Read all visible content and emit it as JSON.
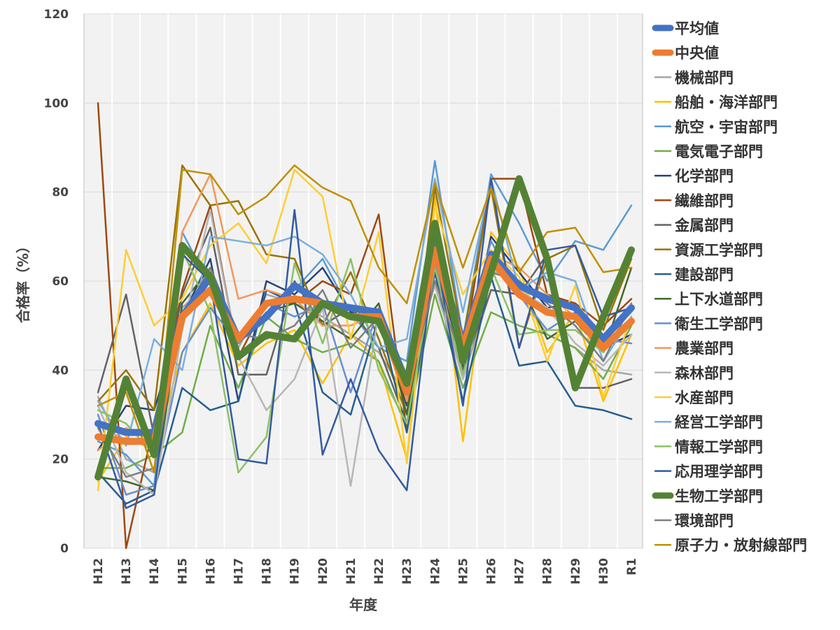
{
  "chart_data": {
    "type": "line",
    "xlabel": "年度",
    "ylabel": "合格率（%）",
    "ylim": [
      0,
      120
    ],
    "yticks": [
      0,
      20,
      40,
      60,
      80,
      100,
      120
    ],
    "grid": "horizontal, light gray; plot background light gray",
    "legend_position": "right",
    "categories": [
      "H12",
      "H13",
      "H14",
      "H15",
      "H16",
      "H17",
      "H18",
      "H19",
      "H20",
      "H21",
      "H22",
      "H23",
      "H24",
      "H25",
      "H26",
      "H27",
      "H28",
      "H29",
      "H30",
      "R1"
    ],
    "series": [
      {
        "name": "平均値",
        "color": "#4472C4",
        "width": 10,
        "values": [
          28,
          26,
          26,
          52,
          61,
          47,
          52,
          59,
          55,
          54,
          53,
          37,
          68,
          46,
          66,
          59,
          56,
          54,
          47,
          54
        ]
      },
      {
        "name": "中央値",
        "color": "#ED7D31",
        "width": 10,
        "values": [
          25,
          24,
          24,
          52,
          58,
          47,
          55,
          56,
          55,
          52,
          52,
          35,
          67,
          45,
          65,
          57,
          53,
          52,
          45,
          51
        ]
      },
      {
        "name": "機械部門",
        "color": "#A5A5A5",
        "width": 2.5,
        "values": [
          34,
          20,
          17,
          54,
          60,
          45,
          57,
          55,
          52,
          48,
          44,
          34,
          63,
          38,
          58,
          57,
          48,
          45,
          40,
          39
        ]
      },
      {
        "name": "船舶・海洋部門",
        "color": "#FFC000",
        "width": 2.5,
        "values": [
          15,
          25,
          22,
          44,
          55,
          41,
          46,
          49,
          37,
          48,
          42,
          20,
          79,
          24,
          71,
          63,
          44,
          53,
          33,
          48
        ]
      },
      {
        "name": "航空・宇宙部門",
        "color": "#5B9BD5",
        "width": 2.5,
        "values": [
          24,
          21,
          14,
          71,
          59,
          48,
          55,
          58,
          65,
          53,
          45,
          42,
          87,
          47,
          84,
          73,
          60,
          69,
          67,
          77
        ]
      },
      {
        "name": "電気電子部門",
        "color": "#70AD47",
        "width": 2.5,
        "values": [
          18,
          18,
          21,
          26,
          50,
          36,
          52,
          47,
          44,
          46,
          42,
          27,
          57,
          36,
          53,
          50,
          48,
          45,
          38,
          50
        ]
      },
      {
        "name": "化学部門",
        "color": "#264478",
        "width": 2.5,
        "values": [
          22,
          32,
          31,
          52,
          65,
          33,
          60,
          57,
          63,
          53,
          52,
          32,
          65,
          41,
          70,
          62,
          54,
          55,
          45,
          48
        ]
      },
      {
        "name": "繊維部門",
        "color": "#9E480E",
        "width": 2.5,
        "values": [
          100,
          0,
          28,
          58,
          77,
          43,
          55,
          55,
          60,
          57,
          75,
          26,
          72,
          43,
          83,
          83,
          57,
          55,
          50,
          56
        ]
      },
      {
        "name": "金属部門",
        "color": "#636363",
        "width": 2.5,
        "values": [
          35,
          57,
          25,
          57,
          72,
          39,
          39,
          60,
          50,
          54,
          45,
          28,
          70,
          40,
          58,
          57,
          66,
          36,
          36,
          38
        ]
      },
      {
        "name": "資源工学部門",
        "color": "#997300",
        "width": 2.5,
        "values": [
          33,
          40,
          31,
          86,
          77,
          78,
          66,
          65,
          50,
          62,
          47,
          30,
          81,
          47,
          81,
          45,
          65,
          68,
          49,
          65
        ]
      },
      {
        "name": "建設部門",
        "color": "#255E91",
        "width": 2.5,
        "values": [
          17,
          10,
          13,
          36,
          31,
          33,
          58,
          55,
          35,
          30,
          52,
          26,
          62,
          33,
          61,
          41,
          42,
          32,
          31,
          29
        ]
      },
      {
        "name": "上下水道部門",
        "color": "#43682B",
        "width": 2.5,
        "values": [
          16,
          15,
          13,
          55,
          63,
          46,
          53,
          55,
          51,
          47,
          55,
          30,
          66,
          44,
          62,
          60,
          47,
          51,
          44,
          63
        ]
      },
      {
        "name": "衛生工学部門",
        "color": "#698ED0",
        "width": 2.5,
        "values": [
          30,
          12,
          14,
          44,
          54,
          46,
          55,
          52,
          55,
          35,
          54,
          38,
          64,
          44,
          69,
          57,
          49,
          53,
          47,
          46
        ]
      },
      {
        "name": "農業部門",
        "color": "#F1975A",
        "width": 2.5,
        "values": [
          22,
          27,
          24,
          71,
          84,
          56,
          58,
          56,
          50,
          50,
          53,
          33,
          70,
          47,
          66,
          63,
          57,
          52,
          46,
          51
        ]
      },
      {
        "name": "森林部門",
        "color": "#B7B7B7",
        "width": 2.5,
        "values": [
          32,
          17,
          12,
          49,
          76,
          43,
          31,
          38,
          54,
          14,
          53,
          39,
          59,
          38,
          63,
          58,
          54,
          46,
          41,
          48
        ]
      },
      {
        "name": "水産部門",
        "color": "#FFCD33",
        "width": 2.5,
        "values": [
          13,
          67,
          50,
          56,
          68,
          73,
          64,
          85,
          79,
          47,
          71,
          19,
          77,
          57,
          67,
          61,
          42,
          59,
          34,
          52
        ]
      },
      {
        "name": "経営工学部門",
        "color": "#7CAFDD",
        "width": 2.5,
        "values": [
          33,
          23,
          47,
          40,
          70,
          69,
          68,
          70,
          66,
          57,
          45,
          47,
          83,
          53,
          83,
          58,
          62,
          60,
          42,
          52
        ]
      },
      {
        "name": "情報工学部門",
        "color": "#8CC168",
        "width": 2.5,
        "values": [
          31,
          28,
          21,
          67,
          53,
          17,
          25,
          64,
          46,
          65,
          40,
          28,
          63,
          39,
          63,
          48,
          49,
          49,
          44,
          54
        ]
      },
      {
        "name": "応用理学部門",
        "color": "#335AA1",
        "width": 2.5,
        "values": [
          28,
          9,
          12,
          66,
          60,
          20,
          19,
          76,
          21,
          38,
          22,
          13,
          67,
          32,
          83,
          45,
          67,
          68,
          52,
          54
        ]
      },
      {
        "name": "生物工学部門",
        "color": "#548235",
        "width": 10,
        "values": [
          16,
          38,
          21,
          68,
          61,
          43,
          48,
          47,
          55,
          52,
          51,
          37,
          73,
          42,
          62,
          83,
          65,
          36,
          52,
          67
        ]
      },
      {
        "name": "環境部門",
        "color": "#7F7F7F",
        "width": 2.5,
        "values": [
          27,
          16,
          18,
          52,
          63,
          48,
          47,
          50,
          58,
          45,
          52,
          35,
          60,
          42,
          62,
          60,
          55,
          50,
          42,
          55
        ]
      },
      {
        "name": "原子力・放射線部門",
        "color": "#BF9000",
        "width": 2.5,
        "values": [
          32,
          35,
          17,
          85,
          84,
          75,
          79,
          86,
          81,
          78,
          63,
          55,
          82,
          63,
          81,
          62,
          71,
          72,
          62,
          63
        ]
      }
    ]
  }
}
